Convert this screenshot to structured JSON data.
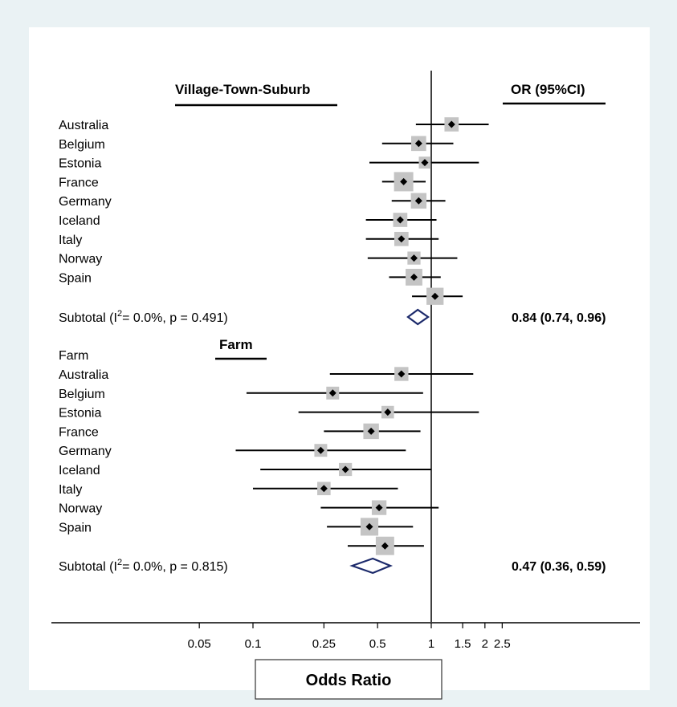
{
  "colors": {
    "page_background": "#eaf2f4",
    "panel_background": "#ffffff",
    "box_fill": "#c4c4c4",
    "estimate_marker": "#000000",
    "diamond_stroke": "#1c2a6b"
  },
  "headers": {
    "left_group_title": "Village-Town-Suburb",
    "right_column_title": "OR (95%CI)",
    "second_group_title": "Farm"
  },
  "axis": {
    "label": "Odds Ratio",
    "scale": "log",
    "tick_labels": [
      "0.05",
      "0.1",
      "0.25",
      "0.5",
      "1",
      "1.5",
      "2",
      "2.5"
    ]
  },
  "chart_data": {
    "type": "forest",
    "xscale": "log",
    "xlim": [
      0.025,
      4
    ],
    "reference_line": 1,
    "xlabel": "Odds Ratio",
    "groups": [
      {
        "title": "Village-Town-Suburb",
        "header_row": "",
        "studies": [
          {
            "label": "Australia",
            "or": 1.3,
            "lo": 0.82,
            "hi": 2.1,
            "weight": 0.3
          },
          {
            "label": "Belgium",
            "or": 0.85,
            "lo": 0.53,
            "hi": 1.33,
            "weight": 0.38
          },
          {
            "label": "Estonia",
            "or": 0.92,
            "lo": 0.45,
            "hi": 1.85,
            "weight": 0.12
          },
          {
            "label": "France",
            "or": 0.7,
            "lo": 0.53,
            "hi": 0.93,
            "weight": 1.0
          },
          {
            "label": "Germany",
            "or": 0.85,
            "lo": 0.6,
            "hi": 1.2,
            "weight": 0.45
          },
          {
            "label": "Iceland",
            "or": 0.67,
            "lo": 0.43,
            "hi": 1.07,
            "weight": 0.3
          },
          {
            "label": "Italy",
            "or": 0.68,
            "lo": 0.43,
            "hi": 1.1,
            "weight": 0.3
          },
          {
            "label": "Norway",
            "or": 0.8,
            "lo": 0.44,
            "hi": 1.4,
            "weight": 0.2
          },
          {
            "label": "Spain",
            "or": 0.8,
            "lo": 0.58,
            "hi": 1.13,
            "weight": 0.6
          },
          {
            "label": "",
            "or": 1.05,
            "lo": 0.78,
            "hi": 1.5,
            "weight": 0.65
          }
        ],
        "subtotal_label": "Subtotal",
        "subtotal_stats": "= 0.0%, p = 0.491)",
        "subtotal": {
          "or": 0.84,
          "lo": 0.74,
          "hi": 0.96
        },
        "subtotal_text": "0.84 (0.74, 0.96)"
      },
      {
        "title": "Farm",
        "header_row": "Farm",
        "studies": [
          {
            "label": "Australia",
            "or": 0.68,
            "lo": 0.27,
            "hi": 1.72,
            "weight": 0.28
          },
          {
            "label": "Belgium",
            "or": 0.28,
            "lo": 0.092,
            "hi": 0.9,
            "weight": 0.18
          },
          {
            "label": "Estonia",
            "or": 0.57,
            "lo": 0.18,
            "hi": 1.85,
            "weight": 0.16
          },
          {
            "label": "France",
            "or": 0.46,
            "lo": 0.25,
            "hi": 0.87,
            "weight": 0.45
          },
          {
            "label": "Germany",
            "or": 0.24,
            "lo": 0.08,
            "hi": 0.72,
            "weight": 0.18
          },
          {
            "label": "Iceland",
            "or": 0.33,
            "lo": 0.11,
            "hi": 1.0,
            "weight": 0.2
          },
          {
            "label": "Italy",
            "or": 0.25,
            "lo": 0.1,
            "hi": 0.65,
            "weight": 0.22
          },
          {
            "label": "Norway",
            "or": 0.51,
            "lo": 0.24,
            "hi": 1.1,
            "weight": 0.35
          },
          {
            "label": "Spain",
            "or": 0.45,
            "lo": 0.26,
            "hi": 0.79,
            "weight": 0.75
          },
          {
            "label": "",
            "or": 0.55,
            "lo": 0.34,
            "hi": 0.91,
            "weight": 0.85
          }
        ],
        "subtotal_label": "Subtotal",
        "subtotal_stats": "= 0.0%, p = 0.815)",
        "subtotal": {
          "or": 0.47,
          "lo": 0.36,
          "hi": 0.59
        },
        "subtotal_text": "0.47 (0.36, 0.59)"
      }
    ]
  }
}
